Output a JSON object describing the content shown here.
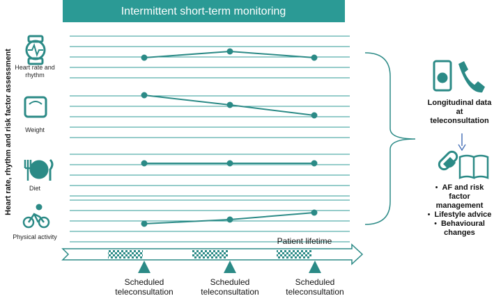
{
  "header": {
    "title": "Intermittent short-term monitoring"
  },
  "side_label": "Heart rate, rhythm and risk factor assessment",
  "parameters": [
    {
      "label": "Heart rate and rhythm"
    },
    {
      "label": "Weight"
    },
    {
      "label": "Diet"
    },
    {
      "label": "Physical activity"
    }
  ],
  "timeline": {
    "label": "Patient lifetime",
    "events": [
      "Scheduled teleconsultation",
      "Scheduled teleconsultation",
      "Scheduled teleconsultation"
    ]
  },
  "right_panel": {
    "title": "Longitudinal data at teleconsultation",
    "bullets": [
      "AF and risk factor management",
      "Lifestyle advice",
      "Behavioural changes"
    ]
  }
}
